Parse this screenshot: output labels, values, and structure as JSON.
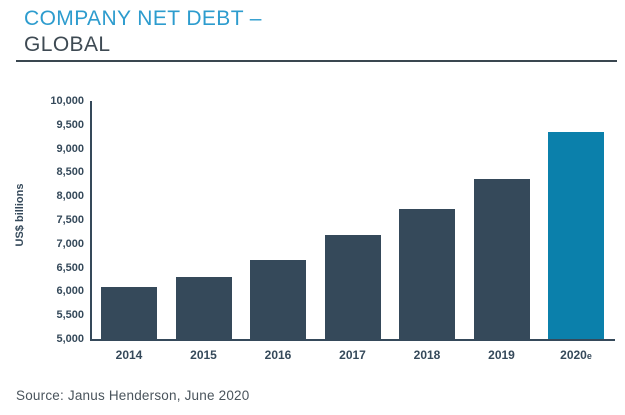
{
  "title": {
    "line1": "COMPANY NET DEBT –",
    "line2": "GLOBAL"
  },
  "source": "Source: Janus Henderson, June 2020",
  "colors": {
    "title_accent": "#2D9CCE",
    "title_dark": "#3E4A53",
    "divider": "#3A4750",
    "axis": "#35495A",
    "bar": "#35495A",
    "bar_highlight": "#0B80AB",
    "source_text": "#4A545C"
  },
  "chart_data": {
    "type": "bar",
    "title": "COMPANY NET DEBT – GLOBAL",
    "categories": [
      "2014",
      "2015",
      "2016",
      "2017",
      "2018",
      "2019",
      "2020e"
    ],
    "values": [
      6100,
      6300,
      6670,
      7180,
      7740,
      8360,
      9350
    ],
    "xlabel": "",
    "ylabel": "US$ billions",
    "ylim": [
      5000,
      10000
    ],
    "ytick_step": 500,
    "ytick_labels": [
      "5,000",
      "5,500",
      "6,000",
      "6,500",
      "7,000",
      "7,500",
      "8,000",
      "8,500",
      "9,000",
      "9,500",
      "10,000"
    ],
    "grid": false,
    "legend": "none",
    "highlight_category": "2020e",
    "bar_color": "#35495A",
    "highlight_color": "#0B80AB"
  }
}
